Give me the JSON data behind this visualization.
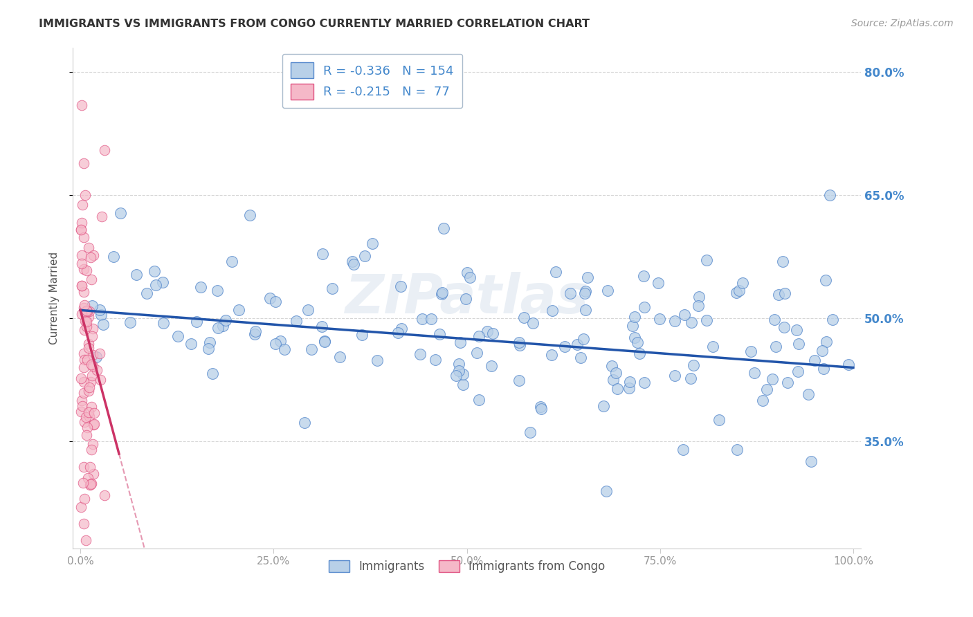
{
  "title": "IMMIGRANTS VS IMMIGRANTS FROM CONGO CURRENTLY MARRIED CORRELATION CHART",
  "source": "Source: ZipAtlas.com",
  "ylabel": "Currently Married",
  "xlabel": "",
  "xlim": [
    0.0,
    100.0
  ],
  "ylim": [
    22.0,
    83.0
  ],
  "ytick_labels": [
    "80.0%",
    "65.0%",
    "50.0%",
    "35.0%"
  ],
  "ytick_values": [
    80.0,
    65.0,
    50.0,
    35.0
  ],
  "xtick_labels": [
    "0.0%",
    "25.0%",
    "50.0%",
    "75.0%",
    "100.0%"
  ],
  "xtick_values": [
    0.0,
    25.0,
    50.0,
    75.0,
    100.0
  ],
  "blue_R": -0.336,
  "blue_N": 154,
  "pink_R": -0.215,
  "pink_N": 77,
  "blue_fill_color": "#b8d0e8",
  "pink_fill_color": "#f5b8c8",
  "blue_edge_color": "#5588cc",
  "pink_edge_color": "#e05080",
  "blue_line_color": "#2255aa",
  "pink_line_color": "#cc3366",
  "background_color": "#ffffff",
  "grid_color": "#cccccc",
  "title_color": "#333333",
  "watermark": "ZIPatlas",
  "right_tick_color": "#4488cc",
  "legend_text_color": "#4488cc"
}
